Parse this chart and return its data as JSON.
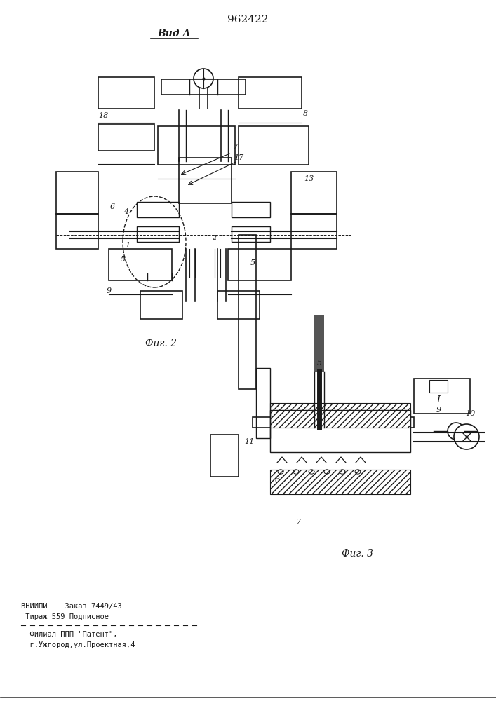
{
  "title": "962422",
  "fig2_label": "Фиг. 2",
  "fig3_label": "Фиг. 3",
  "vid_a_label": "Вид А",
  "label_I": "I",
  "footer_line1": "ВНИИПИ    Заказ 7449/43",
  "footer_line2": " Тираж 559 Подписное",
  "footer_line3": "  Филиал ППП \"Патент\",",
  "footer_line4": "  г.Ужгород,ул.Проектная,4",
  "bg_color": "#ffffff",
  "line_color": "#1a1a1a",
  "hatch_color": "#333333",
  "label_color": "#1a1a1a"
}
